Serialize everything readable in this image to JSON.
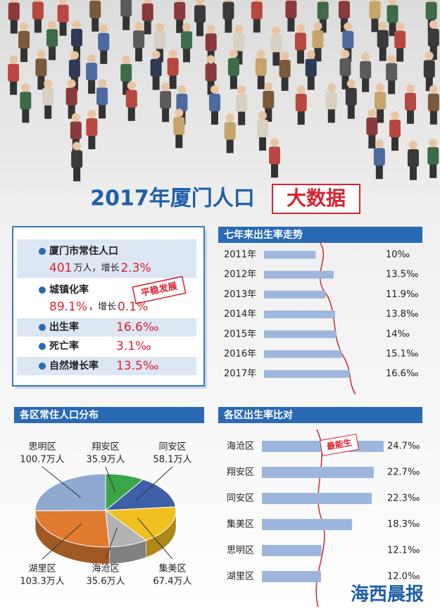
{
  "title": {
    "main": "2017年厦门人口",
    "highlight": "大数据"
  },
  "stats": {
    "items": [
      {
        "label": "厦门市常住人口",
        "value": "401",
        "unit": "万人，增长",
        "change": "2.3%"
      },
      {
        "label": "城镇化率",
        "value": "89.1%",
        "unit": "，增长",
        "change": "0.1%"
      },
      {
        "label": "出生率",
        "value": "16.6‰"
      },
      {
        "label": "死亡率",
        "value": "3.1‰"
      },
      {
        "label": "自然增长率",
        "value": "13.5‰"
      }
    ],
    "stamp": "平稳发展"
  },
  "chart_data": [
    {
      "type": "hbar",
      "title": "七年来出生率走势",
      "categories": [
        "2011年",
        "2012年",
        "2013年",
        "2014年",
        "2015年",
        "2016年",
        "2017年"
      ],
      "values": [
        10,
        13.5,
        11.9,
        13.8,
        14,
        15.1,
        16.6
      ],
      "value_labels": [
        "10‰",
        "13.5‰",
        "11.9‰",
        "13.8‰",
        "14‰",
        "15.1‰",
        "16.6‰"
      ],
      "color": "#9db6dd",
      "xlim": [
        0,
        18
      ]
    },
    {
      "type": "pie",
      "title": "各区常住人口分布",
      "categories": [
        "翔安区",
        "同安区",
        "集美区",
        "海沧区",
        "湖里区",
        "思明区"
      ],
      "values": [
        35.9,
        58.1,
        67.4,
        35.6,
        103.3,
        100.7
      ],
      "value_labels": [
        "35.9万人",
        "58.1万人",
        "67.4万人",
        "35.6万人",
        "103.3万人",
        "100.7万人"
      ],
      "colors": [
        "#3aa64a",
        "#3c5fa8",
        "#f0c020",
        "#b3b3b3",
        "#e07b30",
        "#8fa9d0"
      ]
    },
    {
      "type": "hbar",
      "title": "各区出生率比对",
      "categories": [
        "海沧区",
        "翔安区",
        "同安区",
        "集美区",
        "思明区",
        "湖里区"
      ],
      "values": [
        24.7,
        22.7,
        22.3,
        18.3,
        12.1,
        12
      ],
      "value_labels": [
        "24.7‰",
        "22.7‰",
        "22.3‰",
        "18.3‰",
        "12.1‰",
        "12.0‰"
      ],
      "color": "#9db6dd",
      "xlim": [
        0,
        25
      ],
      "annotation": "最能生"
    }
  ],
  "logo": "海西晨报"
}
